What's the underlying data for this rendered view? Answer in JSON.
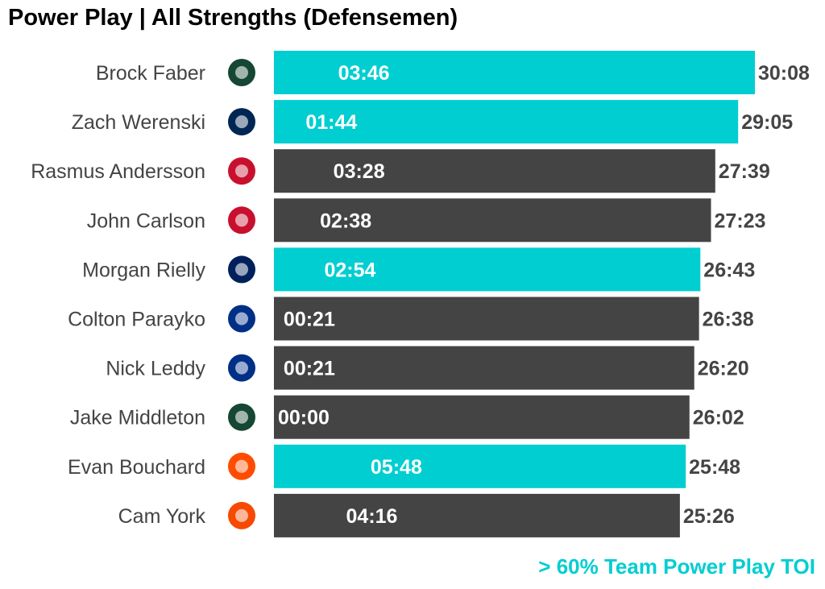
{
  "chart_data": {
    "type": "bar",
    "orientation": "horizontal",
    "title": "Power Play | All Strengths (Defensemen)",
    "legend_note": "> 60% Team Power Play TOI",
    "colors": {
      "highlight": "#00CED1",
      "default": "#444444"
    },
    "categories": [
      "Brock Faber",
      "Zach Werenski",
      "Rasmus Andersson",
      "John Carlson",
      "Morgan Rielly",
      "Colton Parayko",
      "Nick Leddy",
      "Jake Middleton",
      "Evan Bouchard",
      "Cam York"
    ],
    "teams": [
      "minnesota-wild-logo",
      "columbus-blue-jackets-logo",
      "calgary-flames-logo",
      "washington-capitals-logo",
      "toronto-maple-leafs-logo",
      "st-louis-blues-logo",
      "st-louis-blues-logo",
      "minnesota-wild-logo",
      "edmonton-oilers-logo",
      "philadelphia-flyers-logo"
    ],
    "team_colors": [
      "#154734",
      "#002654",
      "#C8102E",
      "#C8102E",
      "#00205B",
      "#002F87",
      "#002F87",
      "#154734",
      "#FF4C00",
      "#F74902"
    ],
    "total_toi": [
      "30:08",
      "29:05",
      "27:39",
      "27:23",
      "26:43",
      "26:38",
      "26:20",
      "26:02",
      "25:48",
      "25:26"
    ],
    "pp_toi": [
      "03:46",
      "01:44",
      "03:28",
      "02:38",
      "02:54",
      "00:21",
      "00:21",
      "00:00",
      "05:48",
      "04:16"
    ],
    "highlight": [
      true,
      true,
      false,
      false,
      true,
      false,
      false,
      false,
      true,
      false
    ]
  }
}
